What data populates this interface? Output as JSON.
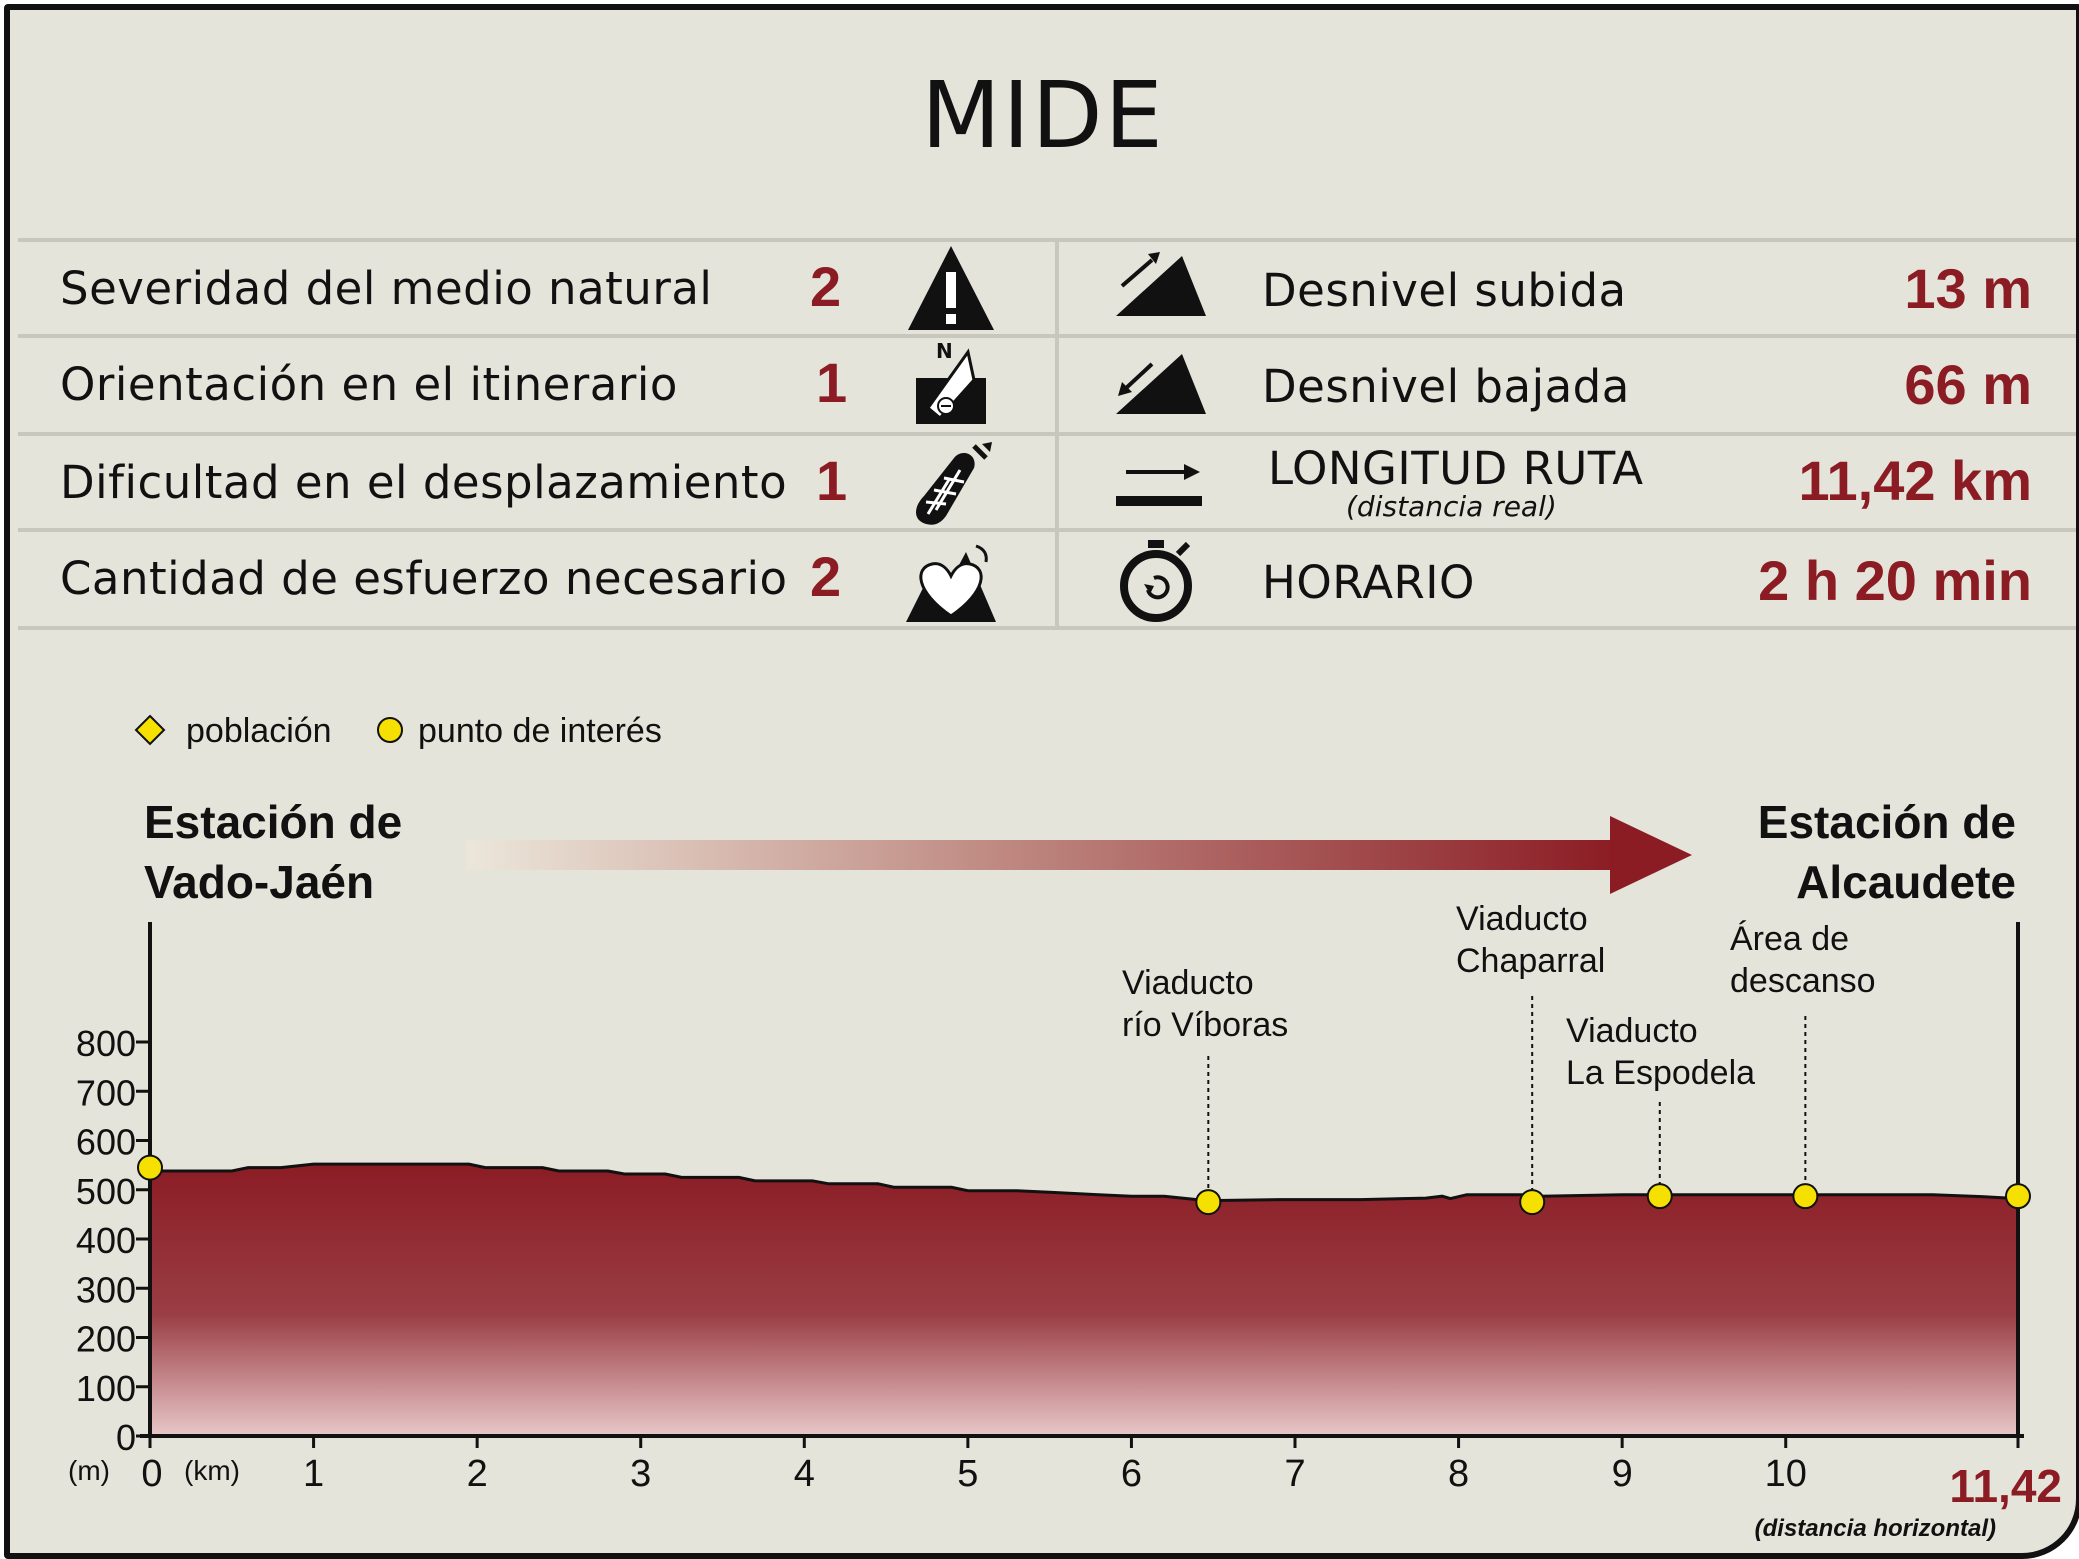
{
  "title": "MIDE",
  "mide": {
    "severidad": {
      "label": "Severidad del medio natural",
      "value": "2"
    },
    "orientacion": {
      "label": "Orientación en el itinerario",
      "value": "1"
    },
    "dificultad": {
      "label": "Dificultad en el desplazamiento",
      "value": "1"
    },
    "esfuerzo": {
      "label": "Cantidad de esfuerzo necesario",
      "value": "2"
    }
  },
  "route": {
    "subida": {
      "label": "Desnivel subida",
      "value": "13 m"
    },
    "bajada": {
      "label": "Desnivel bajada",
      "value": "66 m"
    },
    "longitud": {
      "label": "LONGITUD RUTA",
      "sublabel": "(distancia real)",
      "value": "11,42 km"
    },
    "horario": {
      "label": "HORARIO",
      "value": "2 h 20 min"
    }
  },
  "icons": [
    "warning-mountain-icon",
    "compass-orientation-icon",
    "boot-icon",
    "heart-mountain-icon",
    "ascent-icon",
    "descent-icon",
    "distance-arrow-icon",
    "stopwatch-icon"
  ],
  "colors": {
    "accent": "#8b1c24",
    "marker": "#f5e000",
    "background": "#e5e4da"
  },
  "chart_data": {
    "type": "area",
    "legend": [
      {
        "symbol": "diamond",
        "label": "población"
      },
      {
        "symbol": "circle",
        "label": "punto de interés"
      }
    ],
    "legend_placement": "top-left",
    "start_label": [
      "Estación de",
      "Vado-Jaén"
    ],
    "end_label": [
      "Estación de",
      "Alcaudete"
    ],
    "ylabel": "(m)",
    "xlabel": "(km)",
    "x_end_label": "11,42",
    "x_note": "(distancia horizontal)",
    "xlim": [
      0,
      11.42
    ],
    "ylim": [
      0,
      800
    ],
    "yticks": [
      0,
      100,
      200,
      300,
      400,
      500,
      600,
      700,
      800
    ],
    "xticks": [
      0,
      1,
      2,
      3,
      4,
      5,
      6,
      7,
      8,
      9,
      10
    ],
    "profile": {
      "x": [
        0,
        0.5,
        0.6,
        0.8,
        1.0,
        1.95,
        2.05,
        2.4,
        2.5,
        2.8,
        2.9,
        3.15,
        3.25,
        3.6,
        3.7,
        4.05,
        4.15,
        4.45,
        4.55,
        4.9,
        5.0,
        5.3,
        5.5,
        5.8,
        6.0,
        6.2,
        6.4,
        6.47,
        6.9,
        7.4,
        7.8,
        7.9,
        7.95,
        8.05,
        8.1,
        8.4,
        8.5,
        9.0,
        9.5,
        10.0,
        10.5,
        10.9,
        11.2,
        11.42
      ],
      "y": [
        538,
        538,
        545,
        545,
        552,
        552,
        545,
        545,
        538,
        538,
        532,
        532,
        525,
        525,
        518,
        518,
        512,
        512,
        505,
        505,
        498,
        498,
        495,
        490,
        487,
        487,
        480,
        478,
        480,
        480,
        483,
        487,
        482,
        490,
        490,
        490,
        487,
        490,
        490,
        490,
        490,
        490,
        486,
        482
      ]
    },
    "points": [
      {
        "x": 0,
        "y": 545,
        "label": []
      },
      {
        "x": 6.47,
        "y": 475,
        "label": [
          "Viaducto",
          "río Víboras"
        ]
      },
      {
        "x": 8.45,
        "y": 475,
        "label": [
          "Viaducto",
          "Chaparral"
        ]
      },
      {
        "x": 9.23,
        "y": 487,
        "label": [
          "Viaducto",
          "La Espodela"
        ]
      },
      {
        "x": 10.12,
        "y": 487,
        "label": [
          "Área de",
          "descanso"
        ]
      },
      {
        "x": 11.42,
        "y": 487,
        "label": []
      }
    ]
  }
}
